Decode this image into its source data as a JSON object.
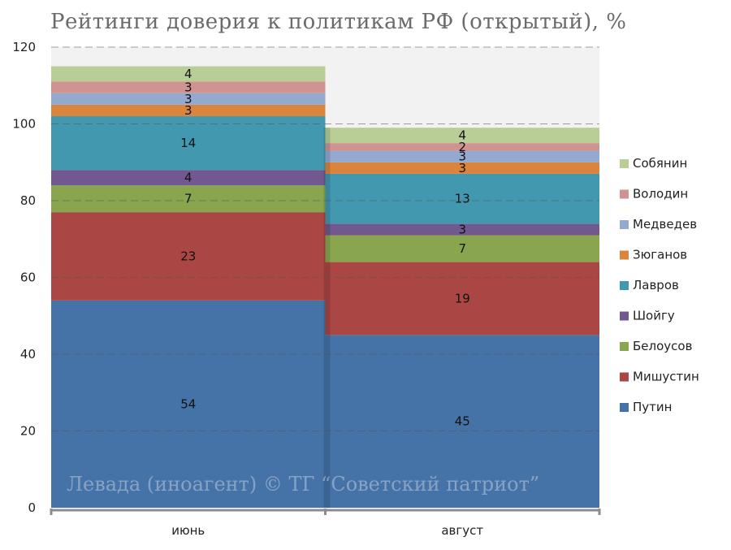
{
  "chart_data": {
    "type": "bar",
    "stacked": true,
    "title": "Рейтинги доверия к политикам РФ (открытый), %",
    "watermark": "Левада (иноагент) © ТГ “Советский патриот”",
    "categories": [
      "июнь",
      "август"
    ],
    "ylim": [
      0,
      120
    ],
    "yticks": [
      "0",
      "20",
      "40",
      "60",
      "80",
      "100",
      "120"
    ],
    "grid": true,
    "legend_position": "right",
    "series": [
      {
        "name": "Путин",
        "values": [
          54,
          45
        ],
        "color": "#4572a7"
      },
      {
        "name": "Мишустин",
        "values": [
          23,
          19
        ],
        "color": "#aa4643"
      },
      {
        "name": "Белоусов",
        "values": [
          7,
          7
        ],
        "color": "#89a54e"
      },
      {
        "name": "Шойгу",
        "values": [
          4,
          3
        ],
        "color": "#71588f"
      },
      {
        "name": "Лавров",
        "values": [
          14,
          13
        ],
        "color": "#4198af"
      },
      {
        "name": "Зюганов",
        "values": [
          3,
          3
        ],
        "color": "#db843d"
      },
      {
        "name": "Медведев",
        "values": [
          3,
          3
        ],
        "color": "#93a9cf"
      },
      {
        "name": "Володин",
        "values": [
          3,
          2
        ],
        "color": "#d19392"
      },
      {
        "name": "Собянин",
        "values": [
          4,
          4
        ],
        "color": "#b9cd96"
      }
    ]
  }
}
